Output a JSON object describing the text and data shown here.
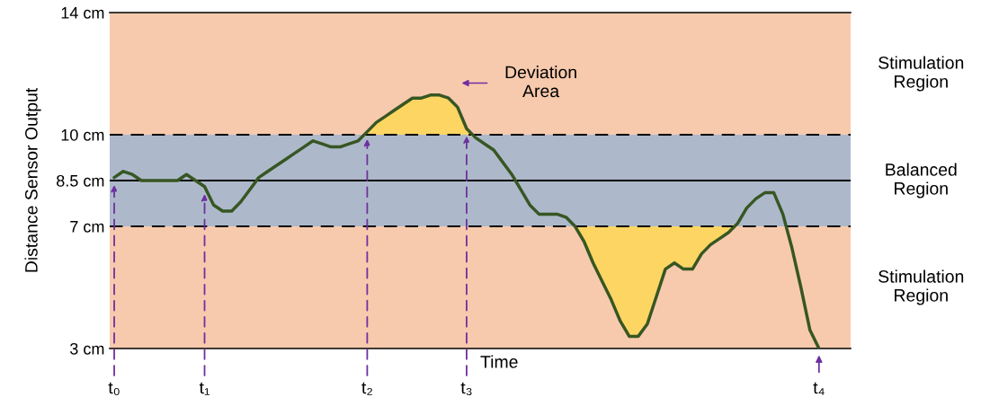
{
  "chart_data": {
    "type": "line",
    "ylabel": "Distance Sensor Output",
    "xlabel": "Time",
    "ylim": [
      3,
      14
    ],
    "yticks": [
      {
        "value": 3,
        "label": "3 cm"
      },
      {
        "value": 7,
        "label": "7 cm"
      },
      {
        "value": 8.5,
        "label": "8.5 cm"
      },
      {
        "value": 10,
        "label": "10 cm"
      },
      {
        "value": 14,
        "label": "14 cm"
      }
    ],
    "categories": [
      "t₀",
      null,
      null,
      null,
      null,
      null,
      null,
      null,
      null,
      null,
      "t₁",
      null,
      null,
      null,
      null,
      null,
      null,
      null,
      null,
      null,
      null,
      null,
      null,
      null,
      null,
      null,
      null,
      null,
      "t₂",
      null,
      null,
      null,
      null,
      null,
      null,
      null,
      null,
      null,
      null,
      "t₃",
      null,
      null,
      null,
      null,
      null,
      null,
      null,
      null,
      null,
      null,
      null,
      null,
      null,
      null,
      null,
      null,
      null,
      null,
      null,
      null,
      null,
      null,
      null,
      null,
      null,
      null,
      null,
      null,
      null,
      null,
      null,
      null,
      null,
      null,
      null,
      null,
      null,
      null,
      "t₄",
      null,
      null,
      null
    ],
    "series": [
      {
        "color": "#375623",
        "values": [
          8.6,
          8.8,
          8.7,
          8.5,
          8.5,
          8.5,
          8.5,
          8.5,
          8.7,
          8.5,
          8.3,
          7.7,
          7.5,
          7.5,
          7.8,
          8.2,
          8.6,
          8.8,
          9.0,
          9.2,
          9.4,
          9.6,
          9.8,
          9.7,
          9.6,
          9.6,
          9.7,
          9.8,
          10.1,
          10.4,
          10.6,
          10.8,
          11.0,
          11.2,
          11.2,
          11.3,
          11.3,
          11.2,
          10.9,
          10.2,
          9.9,
          9.7,
          9.5,
          9.1,
          8.7,
          8.2,
          7.7,
          7.4,
          7.4,
          7.4,
          7.3,
          7.0,
          6.5,
          5.8,
          5.2,
          4.6,
          3.9,
          3.4,
          3.4,
          3.8,
          4.7,
          5.6,
          5.8,
          5.6,
          5.6,
          6.1,
          6.4,
          6.6,
          6.8,
          7.1,
          7.6,
          7.9,
          8.1,
          8.1,
          7.4,
          6.3,
          5.0,
          3.6,
          3.0,
          null,
          null,
          null
        ],
        "lower": [
          8.6,
          8.8,
          8.7,
          8.5,
          8.5,
          8.5,
          8.5,
          8.5,
          8.7,
          8.5,
          8.3,
          7.7,
          7.5,
          7.5,
          7.8,
          8.2,
          8.6,
          8.8,
          9.0,
          9.2,
          9.4,
          9.6,
          9.8,
          9.7,
          9.6,
          9.6,
          9.7,
          9.8,
          10,
          10,
          10,
          10,
          10,
          10,
          10,
          10,
          10,
          10,
          10,
          10,
          9.9,
          9.7,
          9.5,
          9.1,
          8.7,
          8.2,
          7.7,
          7.4,
          7.4,
          7.4,
          7.3,
          7.0,
          6.5,
          5.8,
          5.2,
          4.6,
          3.9,
          3.4,
          3.4,
          3.8,
          4.7,
          5.6,
          5.8,
          5.6,
          5.6,
          6.1,
          6.4,
          6.6,
          6.8,
          7.1,
          7.6,
          7.9,
          8.1,
          8.1,
          7.4,
          6.3,
          5.0,
          3.6,
          3.0,
          null,
          null,
          null
        ],
        "upper": [
          8.6,
          8.8,
          8.7,
          8.5,
          8.5,
          8.5,
          8.5,
          8.5,
          8.7,
          8.5,
          8.3,
          7.7,
          7.5,
          7.5,
          7.8,
          8.2,
          8.6,
          8.8,
          9.0,
          9.2,
          9.4,
          9.6,
          9.8,
          9.7,
          9.6,
          9.6,
          9.7,
          9.8,
          10.1,
          10.4,
          10.6,
          10.8,
          11.0,
          11.2,
          11.2,
          11.3,
          11.3,
          11.2,
          10.9,
          10.2,
          9.9,
          9.7,
          9.5,
          9.1,
          8.7,
          8.2,
          7.7,
          7.4,
          7.4,
          7.4,
          7.3,
          7.0,
          7,
          7,
          7,
          7,
          7,
          7,
          7,
          7,
          7,
          7,
          7,
          7,
          7,
          7,
          7,
          7,
          7,
          7.1,
          7.6,
          7.9,
          8.1,
          8.1,
          7.4,
          6.3,
          5.0,
          3.6,
          3.0,
          null,
          null,
          null
        ]
      }
    ],
    "bands": [
      {
        "axis": "y",
        "from": 10,
        "to": 14,
        "label": "Stimulation\nRegion",
        "color": "#f7caad"
      },
      {
        "axis": "y",
        "from": 7,
        "to": 10,
        "label": "Balanced\nRegion",
        "color": "#adb9ca"
      },
      {
        "axis": "y",
        "from": 3,
        "to": 7,
        "label": "Stimulation\nRegion",
        "color": "#f7caad"
      }
    ],
    "ref_lines": [
      {
        "axis": "y",
        "value": 10,
        "color": "#000000",
        "line_style": "dashed"
      },
      {
        "axis": "y",
        "value": 8.5,
        "color": "#000000",
        "line_style": "solid"
      },
      {
        "axis": "y",
        "value": 7,
        "color": "#000000",
        "line_style": "dashed"
      }
    ],
    "annotations": [
      "Deviation\nArea"
    ],
    "grid": false,
    "legend": false
  }
}
